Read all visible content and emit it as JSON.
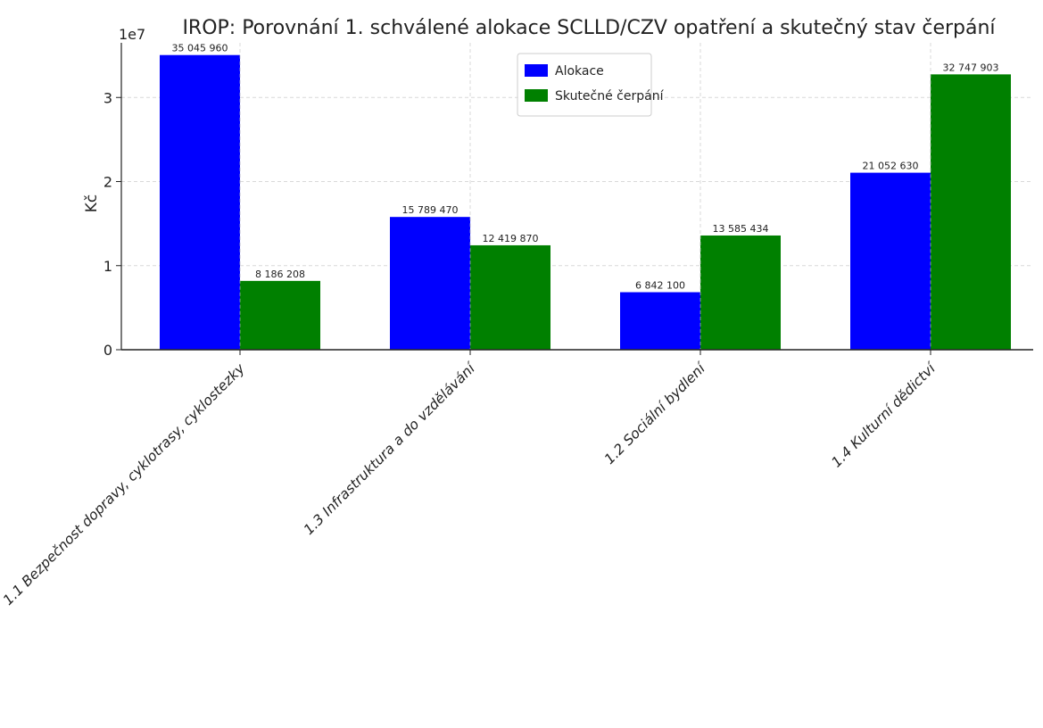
{
  "chart_data": {
    "type": "bar",
    "title": "IROP: Porovnání 1. schválené alokace SCLLD/CZV opatření a skutečný stav čerpání",
    "ylabel": "Kč",
    "xlabel": "",
    "y_scale_label": "1e7",
    "ylim": [
      0,
      36500000
    ],
    "yticks": [
      0,
      10000000,
      20000000,
      30000000
    ],
    "ytick_labels": [
      "0",
      "1",
      "2",
      "3"
    ],
    "grid": true,
    "legend_position": "top-center",
    "categories": [
      "1.1 Bezpečnost dopravy, cyklotrasy, cyklostezky",
      "1.3 Infrastruktura a do vzdělávání",
      "1.2 Sociální bydlení",
      "1.4 Kulturní dědictví"
    ],
    "series": [
      {
        "name": "Alokace",
        "color": "#0000ff",
        "values": [
          35045960,
          15789470,
          6842100,
          21052630
        ],
        "labels": [
          "35 045 960",
          "15 789 470",
          "6 842 100",
          "21 052 630"
        ]
      },
      {
        "name": "Skutečné čerpání",
        "color": "#008000",
        "values": [
          8186208,
          12419870,
          13585434,
          32747903
        ],
        "labels": [
          "8 186 208",
          "12 419 870",
          "13 585 434",
          "32 747 903"
        ]
      }
    ]
  }
}
